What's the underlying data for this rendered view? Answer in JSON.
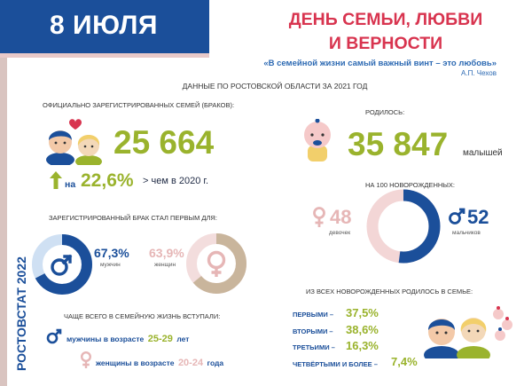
{
  "header": {
    "date": "8 ИЮЛЯ",
    "title_line1": "ДЕНЬ СЕМЬИ, ЛЮБВИ",
    "title_line2": "И ВЕРНОСТИ",
    "quote": "«В семейной жизни самый важный винт – это любовь»",
    "quote_author": "А.П. Чехов",
    "subtitle": "ДАННЫЕ ПО РОСТОВСКОЙ ОБЛАСТИ ЗА 2021 ГОД"
  },
  "side_label": "РОСТОВСТАТ 2022",
  "marriages": {
    "label": "ОФИЦИАЛЬНО ЗАРЕГИСТРИРОВАННЫХ СЕМЕЙ (БРАКОВ):",
    "value": "25 664",
    "growth_prefix": "на",
    "growth_value": "22,6%",
    "growth_suffix": "> чем в 2020 г."
  },
  "births": {
    "label": "РОДИЛОСЬ:",
    "value": "35 847",
    "unit": "малышей"
  },
  "first_marriage": {
    "label": "ЗАРЕГИСТРИРОВАННЫЙ БРАК СТАЛ ПЕРВЫМ ДЛЯ:",
    "men_pct": "67,3%",
    "men_label": "мужчин",
    "men_fraction": 0.673,
    "women_pct": "63,9%",
    "women_label": "женщин",
    "women_fraction": 0.639
  },
  "newborns": {
    "label": "НА 100 НОВОРОЖДЕННЫХ:",
    "girls_value": "48",
    "girls_label": "девочек",
    "boys_value": "52",
    "boys_label": "мальчиков",
    "boys_fraction": 0.52
  },
  "ages": {
    "label": "ЧАЩЕ ВСЕГО В СЕМЕЙНУЮ ЖИЗНЬ ВСТУПАЛИ:",
    "men_prefix": "мужчины в возрасте",
    "men_range": "25-29",
    "men_suffix": "лет",
    "women_prefix": "женщины в возрасте",
    "women_range": "20-24",
    "women_suffix": "года"
  },
  "birth_order": {
    "label": "ИЗ ВСЕХ НОВОРОЖДЕННЫХ РОДИЛОСЬ В СЕМЬЕ:",
    "rows": [
      {
        "label": "ПЕРВЫМИ –",
        "value": "37,5%"
      },
      {
        "label": "ВТОРЫМИ –",
        "value": "38,6%"
      },
      {
        "label": "ТРЕТЬИМИ –",
        "value": "16,3%"
      },
      {
        "label": "ЧЕТВЁРТЫМИ И БОЛЕЕ –",
        "value": "7,4%"
      }
    ]
  },
  "colors": {
    "blue": "#1b4f9a",
    "light_blue": "#cfe0f3",
    "pink": "#e6b6b6",
    "green": "#9ab32d",
    "red": "#d8344f",
    "taupe": "#c9b59c"
  }
}
